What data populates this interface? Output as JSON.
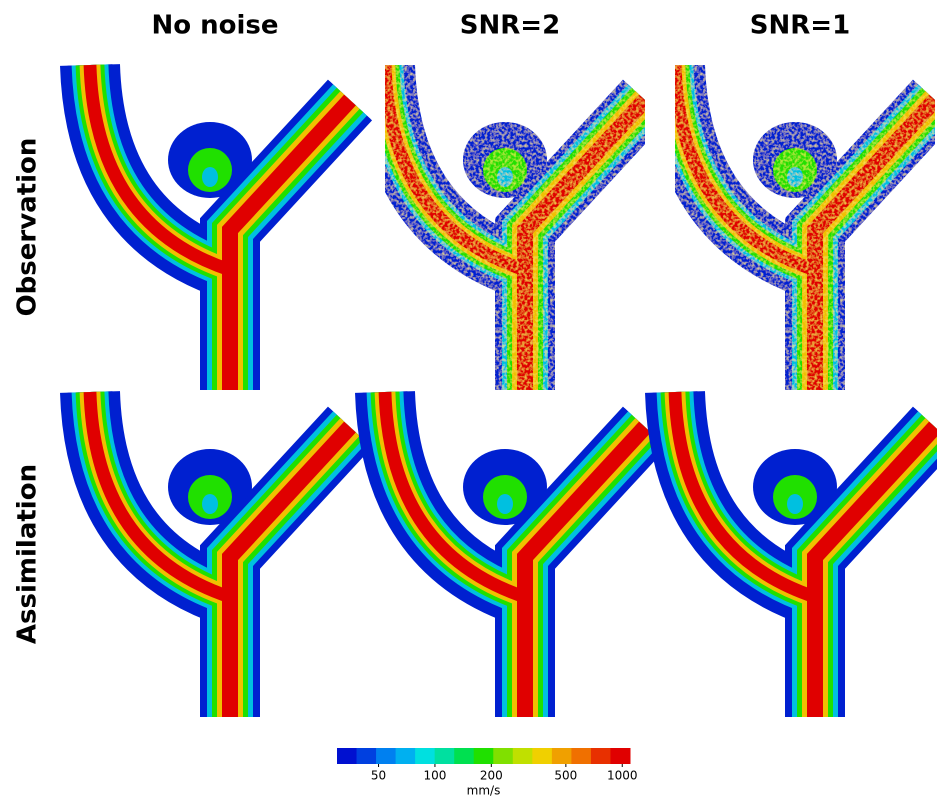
{
  "columns": [
    "No noise",
    "SNR=2",
    "SNR=1"
  ],
  "rows": [
    "Observation",
    "Assimilation"
  ],
  "colorbar": {
    "lim": [
      30,
      1100
    ],
    "log_scale": true,
    "ticks": [
      50,
      100,
      200,
      500,
      1000
    ],
    "unit": "mm/s",
    "colors": [
      "#0010d0",
      "#0040e0",
      "#0080f0",
      "#00b0f0",
      "#00e0e0",
      "#00e0a0",
      "#00e050",
      "#20e000",
      "#80e000",
      "#c0e000",
      "#f0d000",
      "#f0a000",
      "#f07000",
      "#e83000",
      "#e00000"
    ]
  }
}
